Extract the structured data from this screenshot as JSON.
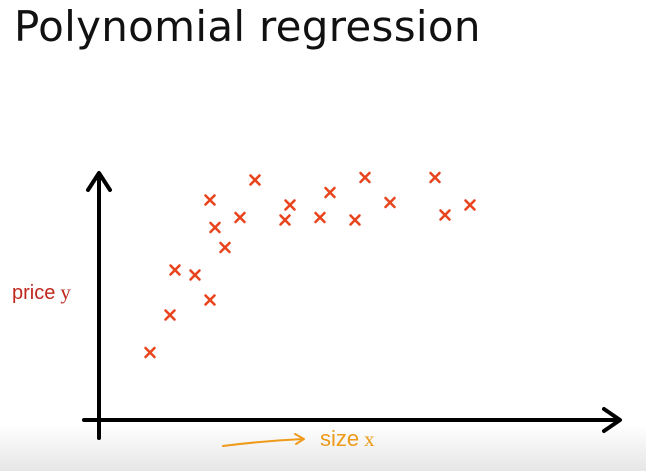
{
  "slide": {
    "title": "Polynomial regression"
  },
  "chart_data": {
    "type": "scatter",
    "xlabel_word": "size",
    "xlabel_var": "x",
    "ylabel_word": "price",
    "ylabel_var": "y",
    "xlim": [
      0,
      100
    ],
    "ylim": [
      0,
      100
    ],
    "grid": false,
    "marker": "x",
    "colors": {
      "marker": "#e8451e",
      "ylabel": "#c0281c",
      "xlabel": "#ee9a1a",
      "axes": "#000000"
    },
    "x": [
      10,
      14,
      15,
      19,
      22,
      22,
      23,
      25,
      28,
      31,
      37,
      38,
      44,
      46,
      51,
      53,
      58,
      67,
      69,
      74
    ],
    "y": [
      27,
      42,
      60,
      58,
      48,
      88,
      77,
      69,
      81,
      96,
      80,
      86,
      81,
      91,
      80,
      97,
      87,
      97,
      82,
      86
    ]
  }
}
